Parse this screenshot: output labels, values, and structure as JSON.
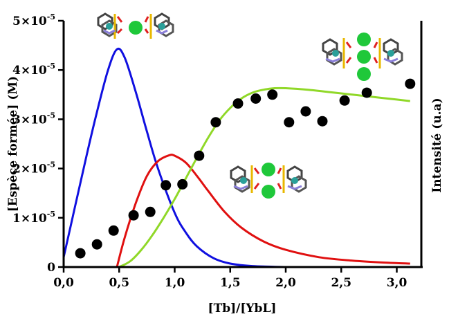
{
  "chart_data": {
    "type": "line",
    "xlabel": "[Tb]/[YbL]",
    "ylabel": "[Espèce formée] (M)",
    "y2label": "Intensité (u.a)",
    "xlim": [
      0,
      3.15
    ],
    "ylim": [
      0,
      5e-05
    ],
    "x_ticks": [
      "0,0",
      "0,5",
      "1,0",
      "1,5",
      "2,0",
      "2,5",
      "3,0"
    ],
    "y_ticks": [
      {
        "mantissa": "0",
        "exp": ""
      },
      {
        "mantissa": "1×10",
        "exp": "-5"
      },
      {
        "mantissa": "2×10",
        "exp": "-5"
      },
      {
        "mantissa": "3×10",
        "exp": "-5"
      },
      {
        "mantissa": "4×10",
        "exp": "-5"
      },
      {
        "mantissa": "5×10",
        "exp": "-5"
      }
    ],
    "series": [
      {
        "color": "#1010e0",
        "x": [
          0,
          0.1,
          0.2,
          0.3,
          0.4,
          0.48,
          0.55,
          0.65,
          0.75,
          0.85,
          1.0,
          1.1,
          1.2,
          1.35,
          1.5,
          1.7,
          2.0
        ],
        "y": [
          2e-06,
          1.2e-05,
          2.2e-05,
          3.15e-05,
          4e-05,
          4.42e-05,
          4.25e-05,
          3.55e-05,
          2.75e-05,
          2e-05,
          1.1e-05,
          7e-06,
          4.2e-06,
          1.8e-06,
          7e-07,
          2e-07,
          0.0
        ]
      },
      {
        "color": "#e01010",
        "x": [
          0.48,
          0.55,
          0.65,
          0.75,
          0.85,
          0.95,
          1.0,
          1.1,
          1.2,
          1.3,
          1.45,
          1.6,
          1.8,
          2.0,
          2.3,
          2.6,
          2.9,
          3.12
        ],
        "y": [
          0.0,
          6e-06,
          1.3e-05,
          1.85e-05,
          2.15e-05,
          2.27e-05,
          2.26e-05,
          2.12e-05,
          1.85e-05,
          1.55e-05,
          1.12e-05,
          8e-06,
          5.2e-06,
          3.5e-06,
          2e-06,
          1.3e-06,
          9e-07,
          7e-07
        ]
      },
      {
        "color": "#90d828",
        "x": [
          0.5,
          0.6,
          0.7,
          0.8,
          0.9,
          1.0,
          1.1,
          1.2,
          1.3,
          1.4,
          1.5,
          1.6,
          1.7,
          1.8,
          1.9,
          2.0,
          2.2,
          2.4,
          2.6,
          2.8,
          3.0,
          3.12
        ],
        "y": [
          0.0,
          1.2e-06,
          3.5e-06,
          6.5e-06,
          1e-05,
          1.38e-05,
          1.8e-05,
          2.22e-05,
          2.62e-05,
          2.97e-05,
          3.23e-05,
          3.42e-05,
          3.54e-05,
          3.6e-05,
          3.63e-05,
          3.63e-05,
          3.6e-05,
          3.55e-05,
          3.5e-05,
          3.45e-05,
          3.4e-05,
          3.37e-05
        ]
      }
    ],
    "points": {
      "name": "Intensité",
      "x": [
        0.15,
        0.3,
        0.45,
        0.63,
        0.78,
        0.92,
        1.07,
        1.22,
        1.37,
        1.57,
        1.73,
        1.88,
        2.03,
        2.18,
        2.33,
        2.53,
        2.73,
        3.12
      ],
      "y": [
        2.8e-06,
        4.6e-06,
        7.4e-06,
        1.05e-05,
        1.12e-05,
        1.66e-05,
        1.68e-05,
        2.26e-05,
        2.94e-05,
        3.32e-05,
        3.42e-05,
        3.5e-05,
        2.94e-05,
        3.16e-05,
        2.96e-05,
        3.38e-05,
        3.54e-05,
        3.72e-05
      ]
    }
  }
}
